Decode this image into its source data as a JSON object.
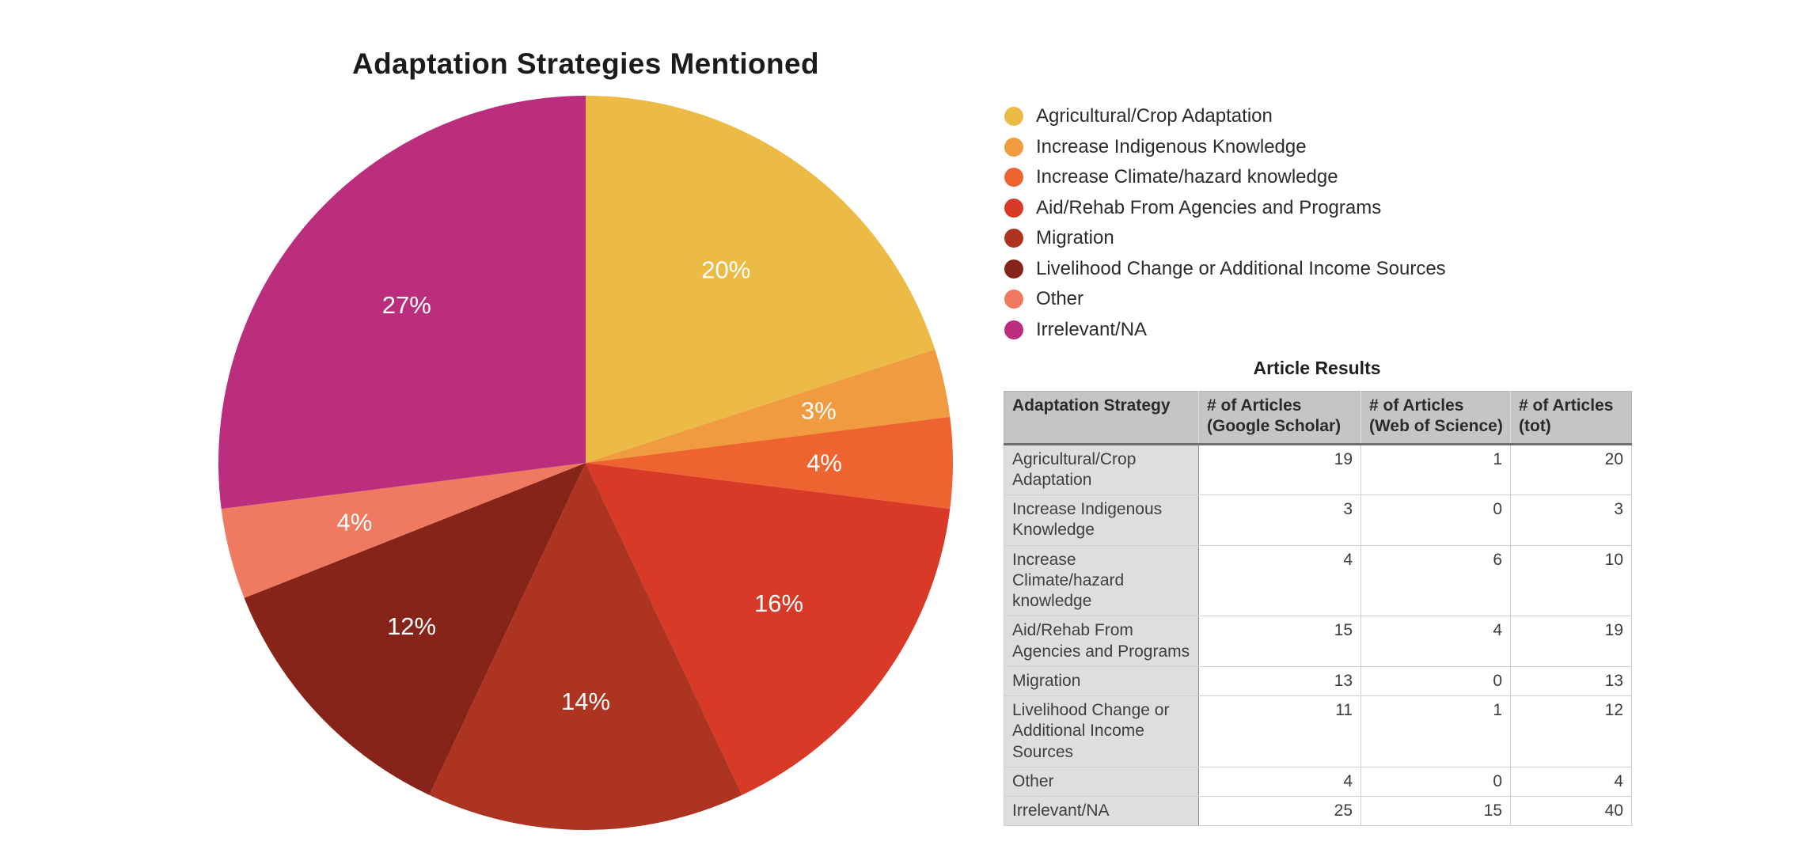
{
  "chart_data": {
    "type": "pie",
    "title": "Adaptation Strategies Mentioned",
    "direction": "clockwise",
    "start_angle_deg": 0,
    "legend_position": "right",
    "label_color": "#FFFFFF",
    "segments": [
      {
        "label": "Agricultural/Crop Adaptation",
        "pct": 20,
        "pct_label": "20%",
        "color": "#ECBB45"
      },
      {
        "label": "Increase Indigenous Knowledge",
        "pct": 3,
        "pct_label": "3%",
        "color": "#F19B40"
      },
      {
        "label": "Increase Climate/hazard knowledge",
        "pct": 4,
        "pct_label": "4%",
        "color": "#ED6430"
      },
      {
        "label": "Aid/Rehab From Agencies and Programs",
        "pct": 16,
        "pct_label": "16%",
        "color": "#D93A28"
      },
      {
        "label": "Migration",
        "pct": 14,
        "pct_label": "14%",
        "color": "#AE3422"
      },
      {
        "label": "Livelihood Change or Additional Income Sources",
        "pct": 12,
        "pct_label": "12%",
        "color": "#87241A"
      },
      {
        "label": "Other",
        "pct": 4,
        "pct_label": "4%",
        "color": "#F07A60"
      },
      {
        "label": "Irrelevant/NA",
        "pct": 27,
        "pct_label": "27%",
        "color": "#BA2E7D"
      }
    ]
  },
  "table": {
    "title": "Article Results",
    "columns": [
      "Adaptation Strategy",
      "# of Articles (Google Scholar)",
      "# of Articles (Web of Science)",
      "# of Articles (tot)"
    ],
    "rows": [
      [
        "Agricultural/Crop Adaptation",
        19,
        1,
        20
      ],
      [
        "Increase Indigenous Knowledge",
        3,
        0,
        3
      ],
      [
        "Increase Climate/hazard knowledge",
        4,
        6,
        10
      ],
      [
        "Aid/Rehab From Agencies and Programs",
        15,
        4,
        19
      ],
      [
        "Migration",
        13,
        0,
        13
      ],
      [
        "Livelihood Change or Additional Income Sources",
        11,
        1,
        12
      ],
      [
        "Other",
        4,
        0,
        4
      ],
      [
        "Irrelevant/NA",
        25,
        15,
        40
      ]
    ]
  }
}
